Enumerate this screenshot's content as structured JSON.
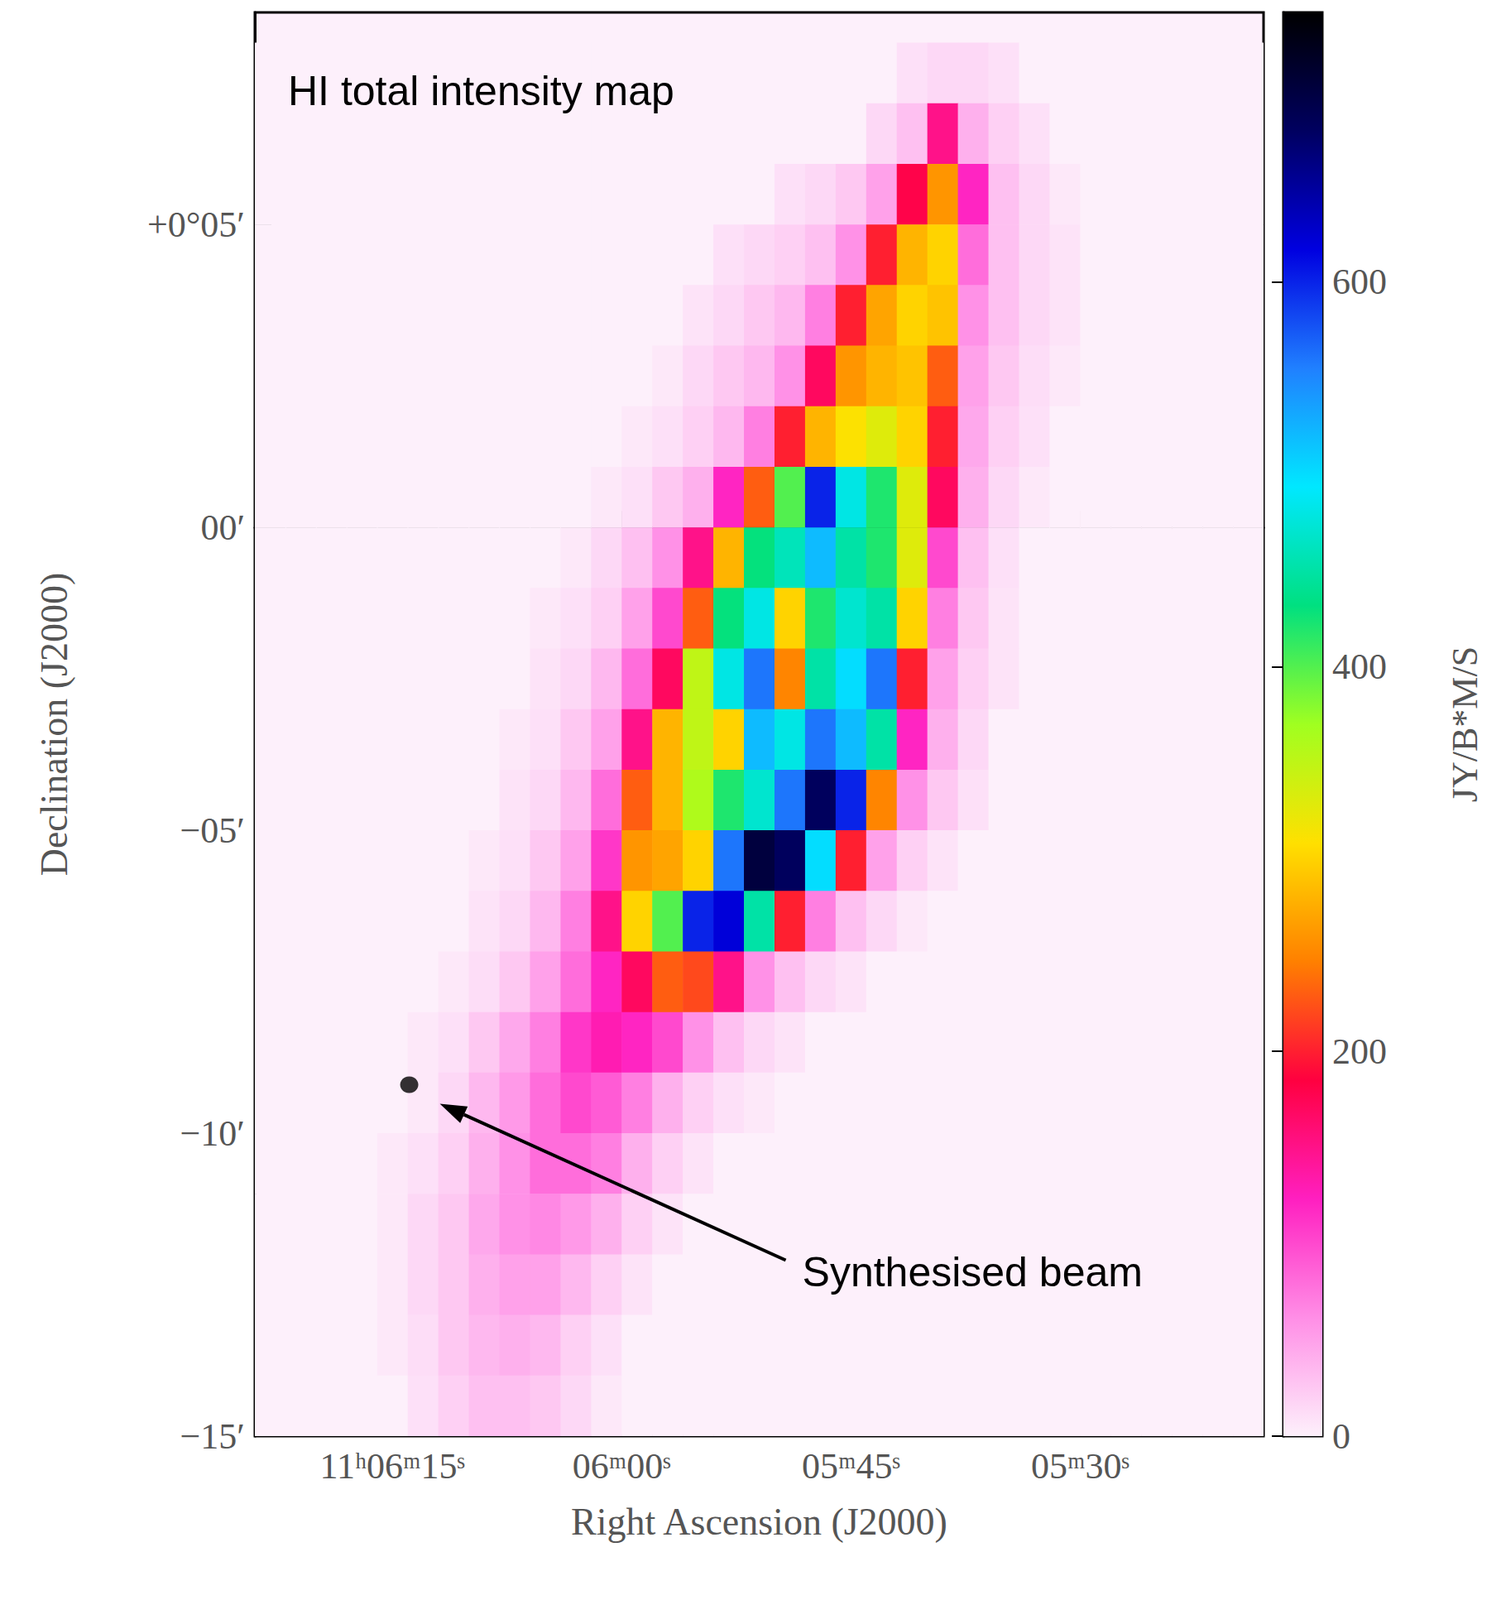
{
  "chart_data": {
    "type": "heatmap",
    "title": "HI total intensity map",
    "x_label": "Right Ascension (J2000)",
    "y_label": "Declination (J2000)",
    "xlim": [
      384,
      318
    ],
    "xticks": [
      {
        "value": 375,
        "label": "11ʰ06ᵐ15ˢ"
      },
      {
        "value": 360,
        "label": "06ᵐ00ˢ"
      },
      {
        "value": 345,
        "label": "05ᵐ45ˢ"
      },
      {
        "value": 330,
        "label": "05ᵐ30ˢ"
      }
    ],
    "ylim": [
      -15,
      8.5
    ],
    "yticks": [
      {
        "value": 5,
        "label": "+0°05′"
      },
      {
        "value": 0,
        "label": "00′"
      },
      {
        "value": -5,
        "label": "−05′"
      },
      {
        "value": -10,
        "label": "−10′"
      },
      {
        "value": -15,
        "label": "−15′"
      }
    ],
    "grid": false,
    "cells": {
      "x": [
        383,
        381,
        379,
        377,
        375,
        373,
        371,
        369,
        367,
        365,
        363,
        361,
        359,
        357,
        355,
        353,
        351,
        349,
        347,
        345,
        343,
        341,
        339,
        337,
        335,
        333,
        331,
        329,
        327,
        325,
        323,
        321,
        319
      ],
      "y": [
        7.5,
        6.5,
        5.5,
        4.5,
        3.5,
        2.5,
        1.5,
        0.5,
        -0.5,
        -1.5,
        -2.5,
        -3.5,
        -4.5,
        -5.5,
        -6.5,
        -7.5,
        -8.5,
        -9.5,
        -10.5,
        -11.5,
        -12.5,
        -13.5,
        -14.5
      ],
      "z": [
        [
          0,
          0,
          0,
          0,
          0,
          0,
          0,
          0,
          0,
          0,
          0,
          0,
          0,
          0,
          0,
          0,
          0,
          0,
          0,
          0,
          0,
          10,
          15,
          15,
          10,
          0,
          0,
          0,
          0,
          0,
          0,
          0,
          0
        ],
        [
          0,
          0,
          0,
          0,
          0,
          0,
          0,
          0,
          0,
          0,
          0,
          0,
          0,
          0,
          0,
          0,
          0,
          0,
          0,
          0,
          15,
          30,
          150,
          40,
          20,
          10,
          0,
          0,
          0,
          0,
          0,
          0,
          0
        ],
        [
          0,
          0,
          0,
          0,
          0,
          0,
          0,
          0,
          0,
          0,
          0,
          0,
          0,
          0,
          0,
          0,
          0,
          10,
          15,
          25,
          50,
          180,
          260,
          120,
          30,
          15,
          5,
          0,
          0,
          0,
          0,
          0,
          0
        ],
        [
          0,
          0,
          0,
          0,
          0,
          0,
          0,
          0,
          0,
          0,
          0,
          0,
          0,
          0,
          0,
          10,
          15,
          20,
          30,
          60,
          200,
          280,
          300,
          80,
          30,
          15,
          8,
          0,
          0,
          0,
          0,
          0,
          0
        ],
        [
          0,
          0,
          0,
          0,
          0,
          0,
          0,
          0,
          0,
          0,
          0,
          0,
          0,
          0,
          8,
          15,
          25,
          35,
          70,
          200,
          270,
          300,
          290,
          60,
          30,
          15,
          8,
          0,
          0,
          0,
          0,
          0,
          0
        ],
        [
          0,
          0,
          0,
          0,
          0,
          0,
          0,
          0,
          0,
          0,
          0,
          0,
          0,
          5,
          15,
          25,
          35,
          60,
          170,
          260,
          280,
          290,
          230,
          50,
          25,
          12,
          5,
          0,
          0,
          0,
          0,
          0,
          0
        ],
        [
          0,
          0,
          0,
          0,
          0,
          0,
          0,
          0,
          0,
          0,
          0,
          0,
          5,
          10,
          20,
          35,
          70,
          200,
          280,
          310,
          330,
          300,
          200,
          45,
          20,
          10,
          0,
          0,
          0,
          0,
          0,
          0,
          0
        ],
        [
          0,
          0,
          0,
          0,
          0,
          0,
          0,
          0,
          0,
          0,
          0,
          5,
          10,
          25,
          40,
          120,
          230,
          400,
          600,
          480,
          420,
          330,
          170,
          40,
          15,
          5,
          0,
          0,
          0,
          0,
          0,
          0,
          0
        ],
        [
          0,
          0,
          0,
          0,
          0,
          0,
          0,
          0,
          0,
          0,
          5,
          15,
          30,
          60,
          150,
          280,
          430,
          460,
          520,
          450,
          420,
          330,
          100,
          30,
          10,
          0,
          0,
          0,
          0,
          0,
          0,
          0,
          0
        ],
        [
          0,
          0,
          0,
          0,
          0,
          0,
          0,
          0,
          0,
          5,
          10,
          20,
          50,
          100,
          230,
          430,
          480,
          300,
          420,
          470,
          450,
          300,
          70,
          25,
          8,
          0,
          0,
          0,
          0,
          0,
          0,
          0,
          0
        ],
        [
          0,
          0,
          0,
          0,
          0,
          0,
          0,
          0,
          0,
          8,
          15,
          35,
          80,
          170,
          350,
          480,
          560,
          250,
          450,
          500,
          560,
          200,
          50,
          20,
          8,
          0,
          0,
          0,
          0,
          0,
          0,
          0,
          0
        ],
        [
          0,
          0,
          0,
          0,
          0,
          0,
          0,
          0,
          5,
          10,
          25,
          50,
          150,
          280,
          350,
          300,
          520,
          480,
          560,
          520,
          450,
          120,
          40,
          15,
          0,
          0,
          0,
          0,
          0,
          0,
          0,
          0,
          0
        ],
        [
          0,
          0,
          0,
          0,
          0,
          0,
          0,
          0,
          8,
          15,
          35,
          80,
          230,
          280,
          360,
          420,
          470,
          560,
          680,
          600,
          250,
          60,
          25,
          10,
          0,
          0,
          0,
          0,
          0,
          0,
          0,
          0,
          0
        ],
        [
          0,
          0,
          0,
          0,
          0,
          0,
          0,
          5,
          10,
          25,
          50,
          110,
          260,
          270,
          300,
          560,
          700,
          680,
          500,
          200,
          50,
          20,
          8,
          0,
          0,
          0,
          0,
          0,
          0,
          0,
          0,
          0,
          0
        ],
        [
          0,
          0,
          0,
          0,
          0,
          0,
          0,
          8,
          15,
          35,
          70,
          150,
          300,
          400,
          600,
          620,
          450,
          200,
          70,
          30,
          15,
          5,
          0,
          0,
          0,
          0,
          0,
          0,
          0,
          0,
          0,
          0,
          0
        ],
        [
          0,
          0,
          0,
          0,
          0,
          0,
          5,
          12,
          25,
          50,
          80,
          120,
          170,
          230,
          220,
          150,
          60,
          30,
          15,
          8,
          0,
          0,
          0,
          0,
          0,
          0,
          0,
          0,
          0,
          0,
          0,
          0,
          0
        ],
        [
          0,
          0,
          0,
          0,
          0,
          5,
          10,
          25,
          45,
          70,
          110,
          130,
          120,
          100,
          60,
          30,
          15,
          8,
          0,
          0,
          0,
          0,
          0,
          0,
          0,
          0,
          0,
          0,
          0,
          0,
          0,
          0,
          0
        ],
        [
          0,
          0,
          0,
          0,
          0,
          5,
          15,
          35,
          55,
          80,
          100,
          90,
          70,
          40,
          20,
          10,
          5,
          0,
          0,
          0,
          0,
          0,
          0,
          0,
          0,
          0,
          0,
          0,
          0,
          0,
          0,
          0,
          0
        ],
        [
          0,
          0,
          0,
          0,
          5,
          10,
          20,
          40,
          60,
          80,
          80,
          70,
          40,
          20,
          8,
          0,
          0,
          0,
          0,
          0,
          0,
          0,
          0,
          0,
          0,
          0,
          0,
          0,
          0,
          0,
          0,
          0,
          0
        ],
        [
          0,
          0,
          0,
          0,
          5,
          15,
          25,
          45,
          60,
          65,
          55,
          40,
          20,
          8,
          0,
          0,
          0,
          0,
          0,
          0,
          0,
          0,
          0,
          0,
          0,
          0,
          0,
          0,
          0,
          0,
          0,
          0,
          0
        ],
        [
          0,
          0,
          0,
          0,
          5,
          15,
          25,
          40,
          50,
          50,
          35,
          20,
          8,
          0,
          0,
          0,
          0,
          0,
          0,
          0,
          0,
          0,
          0,
          0,
          0,
          0,
          0,
          0,
          0,
          0,
          0,
          0,
          0
        ],
        [
          0,
          0,
          0,
          0,
          5,
          12,
          25,
          35,
          40,
          35,
          20,
          10,
          0,
          0,
          0,
          0,
          0,
          0,
          0,
          0,
          0,
          0,
          0,
          0,
          0,
          0,
          0,
          0,
          0,
          0,
          0,
          0,
          0
        ],
        [
          0,
          0,
          0,
          0,
          0,
          10,
          20,
          30,
          30,
          25,
          15,
          5,
          0,
          0,
          0,
          0,
          0,
          0,
          0,
          0,
          0,
          0,
          0,
          0,
          0,
          0,
          0,
          0,
          0,
          0,
          0,
          0,
          0
        ]
      ]
    },
    "colorbar": {
      "label": "JY/B*M/S",
      "range": [
        0,
        740
      ],
      "ticks": [
        0,
        200,
        400,
        600
      ]
    },
    "annotations": [
      {
        "text": "Synthesised beam",
        "x": 373.9,
        "y": -9.2
      }
    ]
  }
}
